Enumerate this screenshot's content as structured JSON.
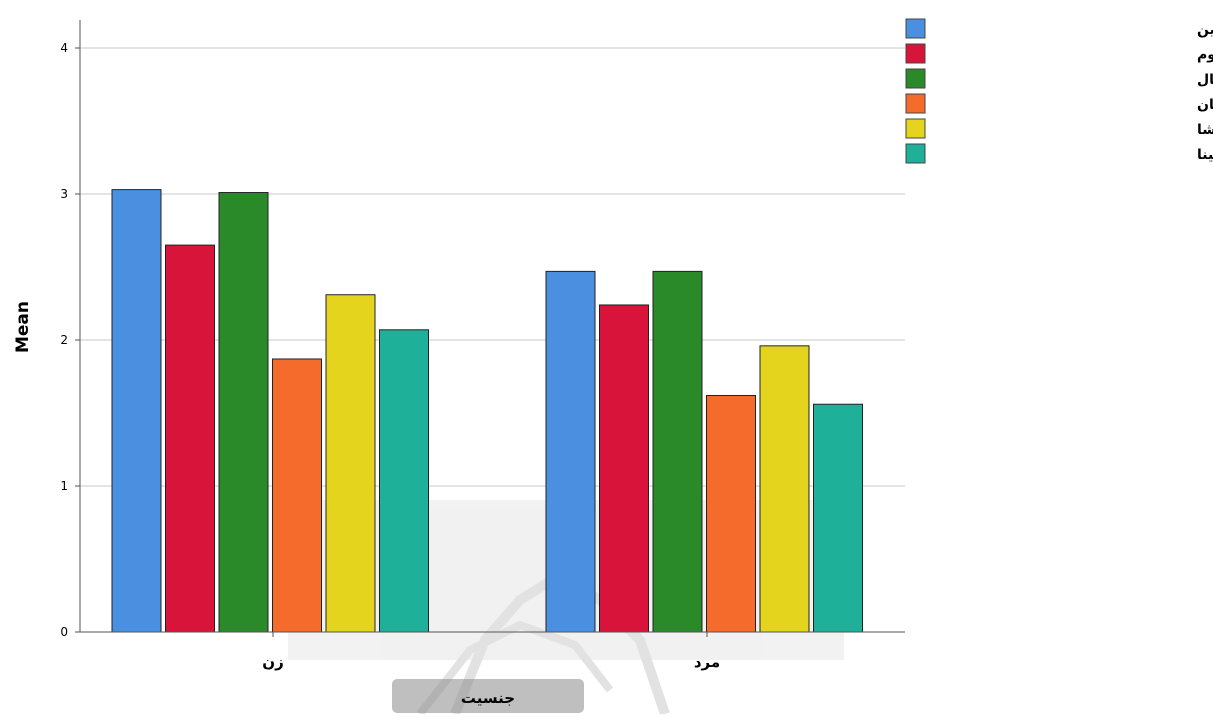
{
  "chart_data": {
    "type": "bar",
    "xlabel": "جنسیت",
    "ylabel": "Mean",
    "ylim": [
      0,
      4.2
    ],
    "yticks": [
      0,
      1,
      2,
      3,
      4
    ],
    "grid": true,
    "legend_position": "top-right",
    "categories": [
      "زن",
      "مرد"
    ],
    "series": [
      {
        "name": "مجتمع تجاری گلستان و ایران زمین",
        "color": "#4a8fe0",
        "values": [
          3.03,
          2.47
        ]
      },
      {
        "name": "مجموعه تجاری میلاد نور و پلاتینیوم",
        "color": "#d9143a",
        "values": [
          2.65,
          2.24
        ]
      },
      {
        "name": "مجموعه تجاری آبال",
        "color": "#2a8a2a",
        "values": [
          3.01,
          2.47
        ]
      },
      {
        "name": "مجتمع تجاری مفید ستارخان",
        "color": "#f46b2b",
        "values": [
          1.87,
          1.62
        ]
      },
      {
        "name": "مجتمع تجاری گیشا",
        "color": "#e4d41e",
        "values": [
          2.31,
          1.96
        ]
      },
      {
        "name": "فرهنگسرای ابن سینا",
        "color": "#1fb09a",
        "values": [
          2.07,
          1.56
        ]
      }
    ]
  }
}
